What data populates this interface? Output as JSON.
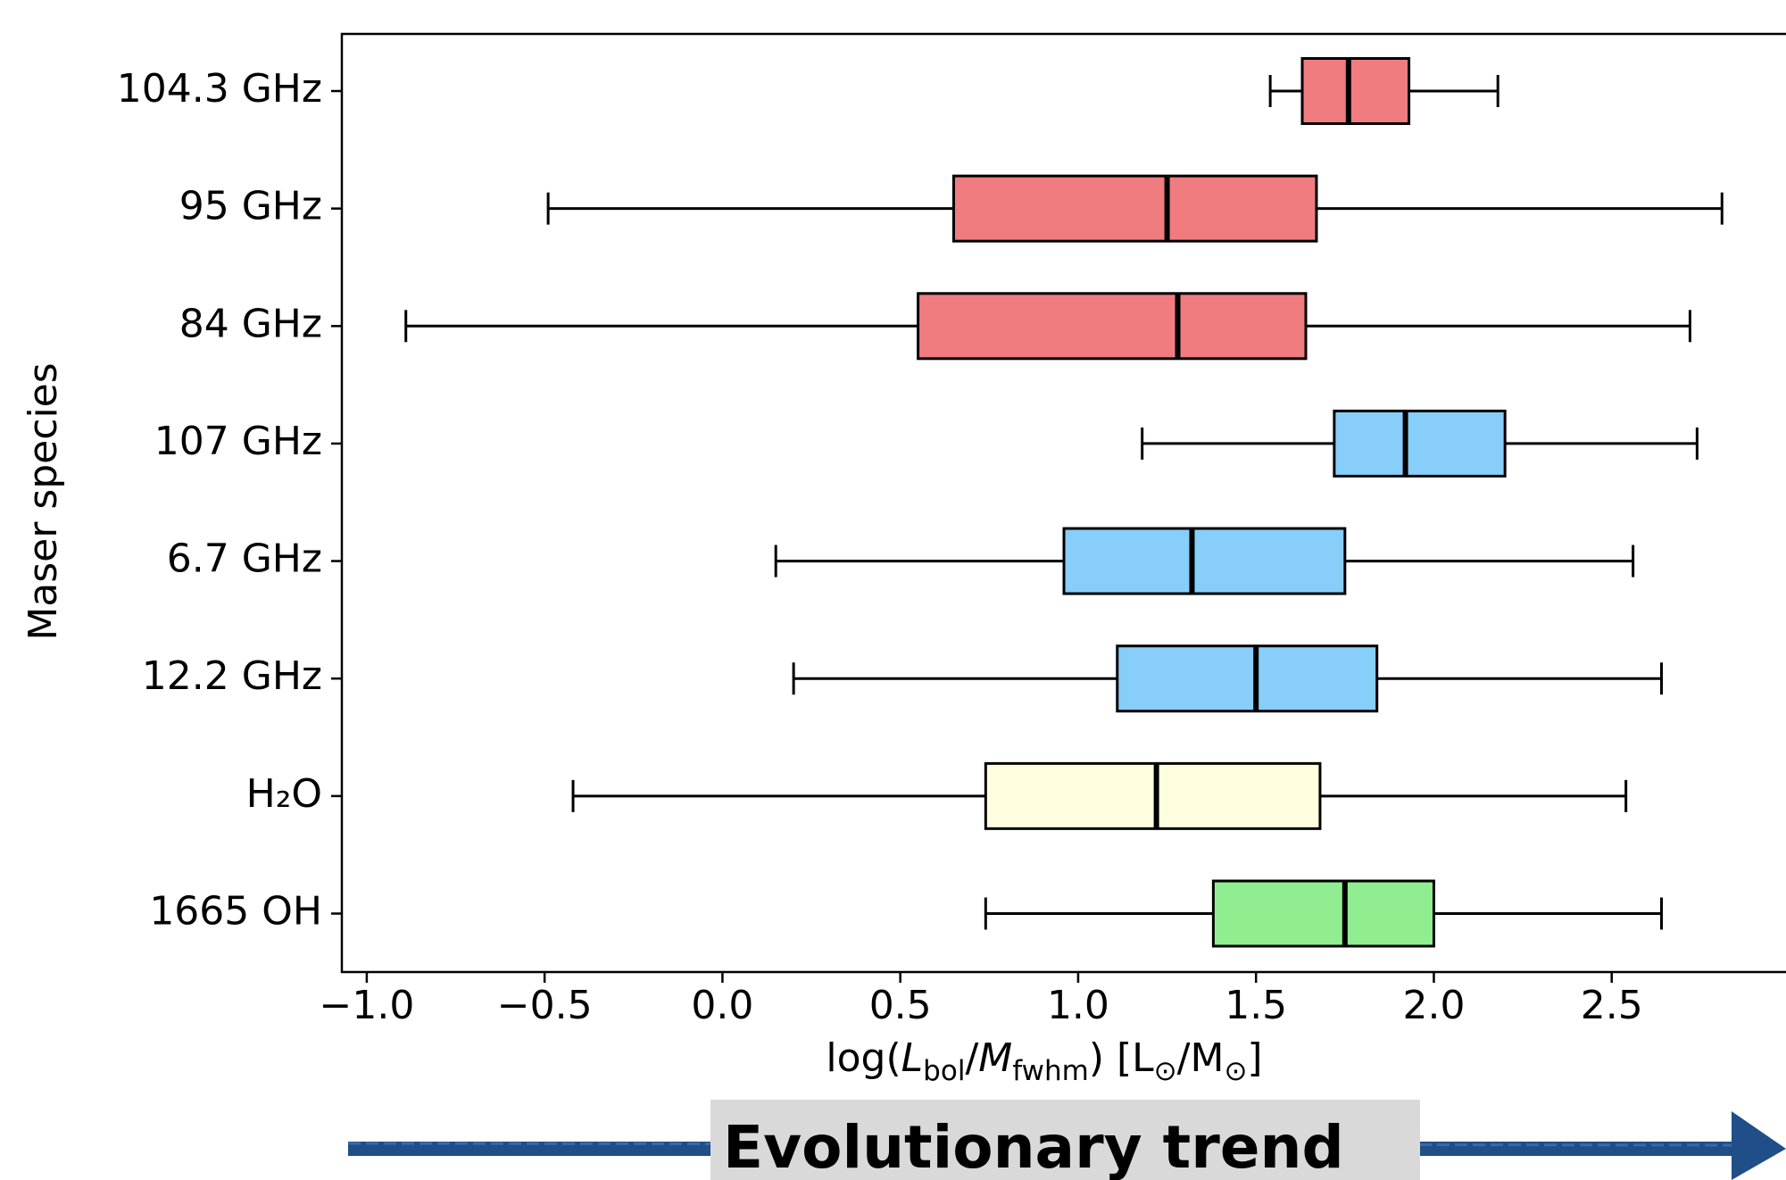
{
  "chart_data": {
    "type": "boxplot",
    "orientation": "horizontal",
    "categories": [
      "104.3 GHz",
      "95 GHz",
      "84 GHz",
      "107 GHz",
      "6.7 GHz",
      "12.2 GHz",
      "H₂O",
      "1665 OH"
    ],
    "colors": [
      "#f07c7f",
      "#f07c7f",
      "#f07c7f",
      "#87cefa",
      "#87cefa",
      "#87cefa",
      "#ffffe0",
      "#90ee90"
    ],
    "boxes": [
      {
        "low": 1.54,
        "q1": 1.63,
        "median": 1.76,
        "q3": 1.93,
        "high": 2.18
      },
      {
        "low": -0.49,
        "q1": 0.65,
        "median": 1.25,
        "q3": 1.67,
        "high": 2.81
      },
      {
        "low": -0.89,
        "q1": 0.55,
        "median": 1.28,
        "q3": 1.64,
        "high": 2.72
      },
      {
        "low": 1.18,
        "q1": 1.72,
        "median": 1.92,
        "q3": 2.2,
        "high": 2.74
      },
      {
        "low": 0.15,
        "q1": 0.96,
        "median": 1.32,
        "q3": 1.75,
        "high": 2.56
      },
      {
        "low": 0.2,
        "q1": 1.11,
        "median": 1.5,
        "q3": 1.84,
        "high": 2.64
      },
      {
        "low": -0.42,
        "q1": 0.74,
        "median": 1.22,
        "q3": 1.68,
        "high": 2.54
      },
      {
        "low": 0.74,
        "q1": 1.38,
        "median": 1.75,
        "q3": 2.0,
        "high": 2.64
      }
    ],
    "xlim": [
      -1.07,
      2.99
    ],
    "xticks": [
      {
        "value": -1.0,
        "label": "−1.0"
      },
      {
        "value": -0.5,
        "label": "−0.5"
      },
      {
        "value": 0.0,
        "label": "0.0"
      },
      0.5,
      {
        "value": 1.0,
        "label": "1.0"
      },
      1.5,
      {
        "value": 2.0,
        "label": "2.0"
      },
      2.5
    ],
    "xlabel": [
      "log(",
      "L",
      "bol",
      "/",
      "M",
      "fwhm",
      ") [L",
      "⊙",
      "/M",
      "⊙",
      "]"
    ],
    "ylabel": "Maser species",
    "annotation": "Evolutionary trend"
  }
}
